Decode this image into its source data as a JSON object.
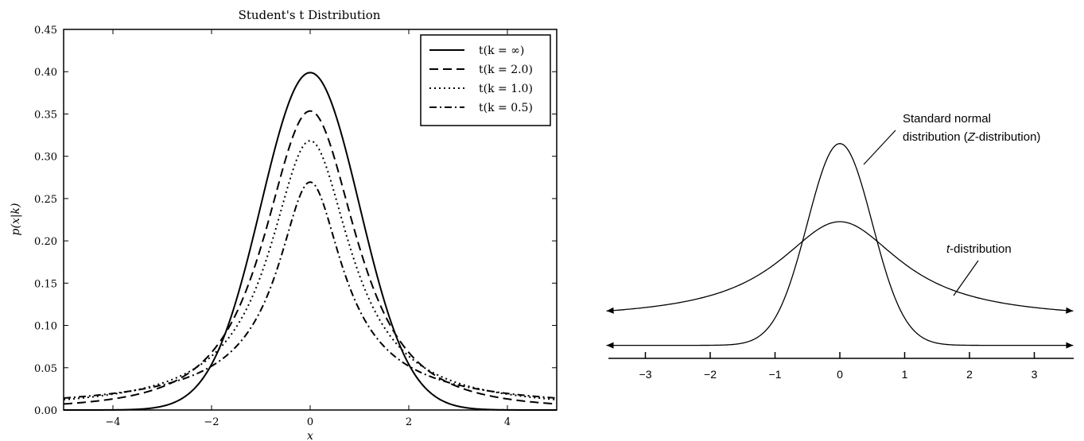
{
  "chart_data": [
    {
      "type": "line",
      "title": "Student's t Distribution",
      "xlabel": "x",
      "ylabel": "p(x|k)",
      "xlim": [
        -5,
        5
      ],
      "ylim": [
        0,
        0.45
      ],
      "xticks": [
        "−4",
        "−2",
        "0",
        "2",
        "4"
      ],
      "yticks": [
        "0.00",
        "0.05",
        "0.10",
        "0.15",
        "0.20",
        "0.25",
        "0.30",
        "0.35",
        "0.40",
        "0.45"
      ],
      "grid": false,
      "legend_position": "top-right",
      "series": [
        {
          "name": "t(k = ∞)",
          "k": "inf",
          "line_style": "solid",
          "peak": 0.4
        },
        {
          "name": "t(k = 2.0)",
          "k": 2.0,
          "line_style": "dashed",
          "peak": 0.354
        },
        {
          "name": "t(k = 1.0)",
          "k": 1.0,
          "line_style": "dotted",
          "peak": 0.318
        },
        {
          "name": "t(k = 0.5)",
          "k": 0.5,
          "line_style": "dashdot",
          "peak": 0.27
        }
      ]
    },
    {
      "type": "line",
      "title": "",
      "xlim": [
        -3.5,
        3.5
      ],
      "xticks": [
        "−3",
        "−2",
        "−1",
        "0",
        "1",
        "2",
        "3"
      ],
      "grid": false,
      "series": [
        {
          "name": "Standard normal distribution (Z-distribution)",
          "peak_height": 0.315,
          "tail_level": 0.018
        },
        {
          "name": "t-distribution",
          "peak_height": 0.2,
          "tail_level": 0.055
        }
      ],
      "annotations": {
        "normal_line1": "Standard normal",
        "normal_line2_pre": "distribution (",
        "normal_line2_italic": "Z",
        "normal_line2_post": "-distribution)",
        "t_italic": "t",
        "t_post": "-distribution"
      }
    }
  ]
}
